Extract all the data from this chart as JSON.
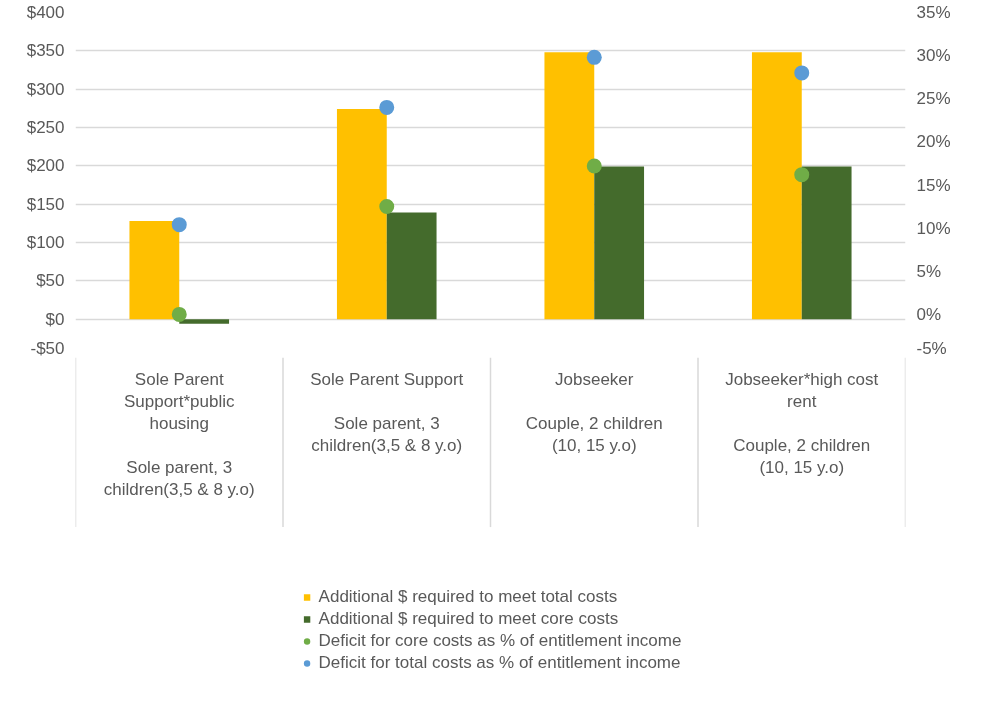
{
  "chart_data": {
    "type": "bar",
    "categories": [
      "Sole Parent Support*public housing\nSole parent, 3 children(3,5 & 8 y.o)",
      "Sole Parent Support\nSole parent, 3 children(3,5 & 8 y.o)",
      "Jobseeker\nCouple, 2 children (10, 15 y.o)",
      "Jobseeker*high cost rent\nCouple, 2 children (10, 15 y.o)"
    ],
    "series": [
      {
        "name": "Additional $ required to meet total costs",
        "color": "#ffc000",
        "values": [
          128,
          274,
          348,
          348
        ]
      },
      {
        "name": "Additional $ required to meet core costs",
        "color": "#446b2c",
        "values": [
          -6,
          139,
          199,
          199
        ]
      },
      {
        "name": "Deficit for core costs as % of entitlement income",
        "type": "scatter",
        "axis": "y2",
        "color": "#70ad47",
        "values": [
          0,
          12.5,
          17.2,
          16.2
        ]
      },
      {
        "name": "Deficit for total costs as % of entitlement income",
        "type": "scatter",
        "axis": "y2",
        "color": "#5b9bd5",
        "values": [
          10.4,
          24.0,
          29.8,
          28.0
        ]
      }
    ],
    "ylim": [
      -50,
      400
    ],
    "yticks": [
      {
        "value": -50,
        "label": "-$50"
      },
      {
        "value": 0,
        "label": "$0"
      },
      {
        "value": 50,
        "label": "$50"
      },
      {
        "value": 100,
        "label": "$100"
      },
      {
        "value": 150,
        "label": "$150"
      },
      {
        "value": 200,
        "label": "$200"
      },
      {
        "value": 250,
        "label": "$250"
      },
      {
        "value": 300,
        "label": "$300"
      },
      {
        "value": 350,
        "label": "$350"
      },
      {
        "value": 400,
        "label": "$400"
      }
    ],
    "y2lim": [
      -5,
      35
    ],
    "y2ticks": [
      {
        "value": -5,
        "label": "-5%"
      },
      {
        "value": 0,
        "label": "0%"
      },
      {
        "value": 5,
        "label": "5%"
      },
      {
        "value": 10,
        "label": "10%"
      },
      {
        "value": 15,
        "label": "15%"
      },
      {
        "value": 20,
        "label": "20%"
      },
      {
        "value": 25,
        "label": "25%"
      },
      {
        "value": 30,
        "label": "30%"
      },
      {
        "value": 35,
        "label": "35%"
      }
    ],
    "grid": "y",
    "legend": "bottom",
    "marker": "circle"
  }
}
